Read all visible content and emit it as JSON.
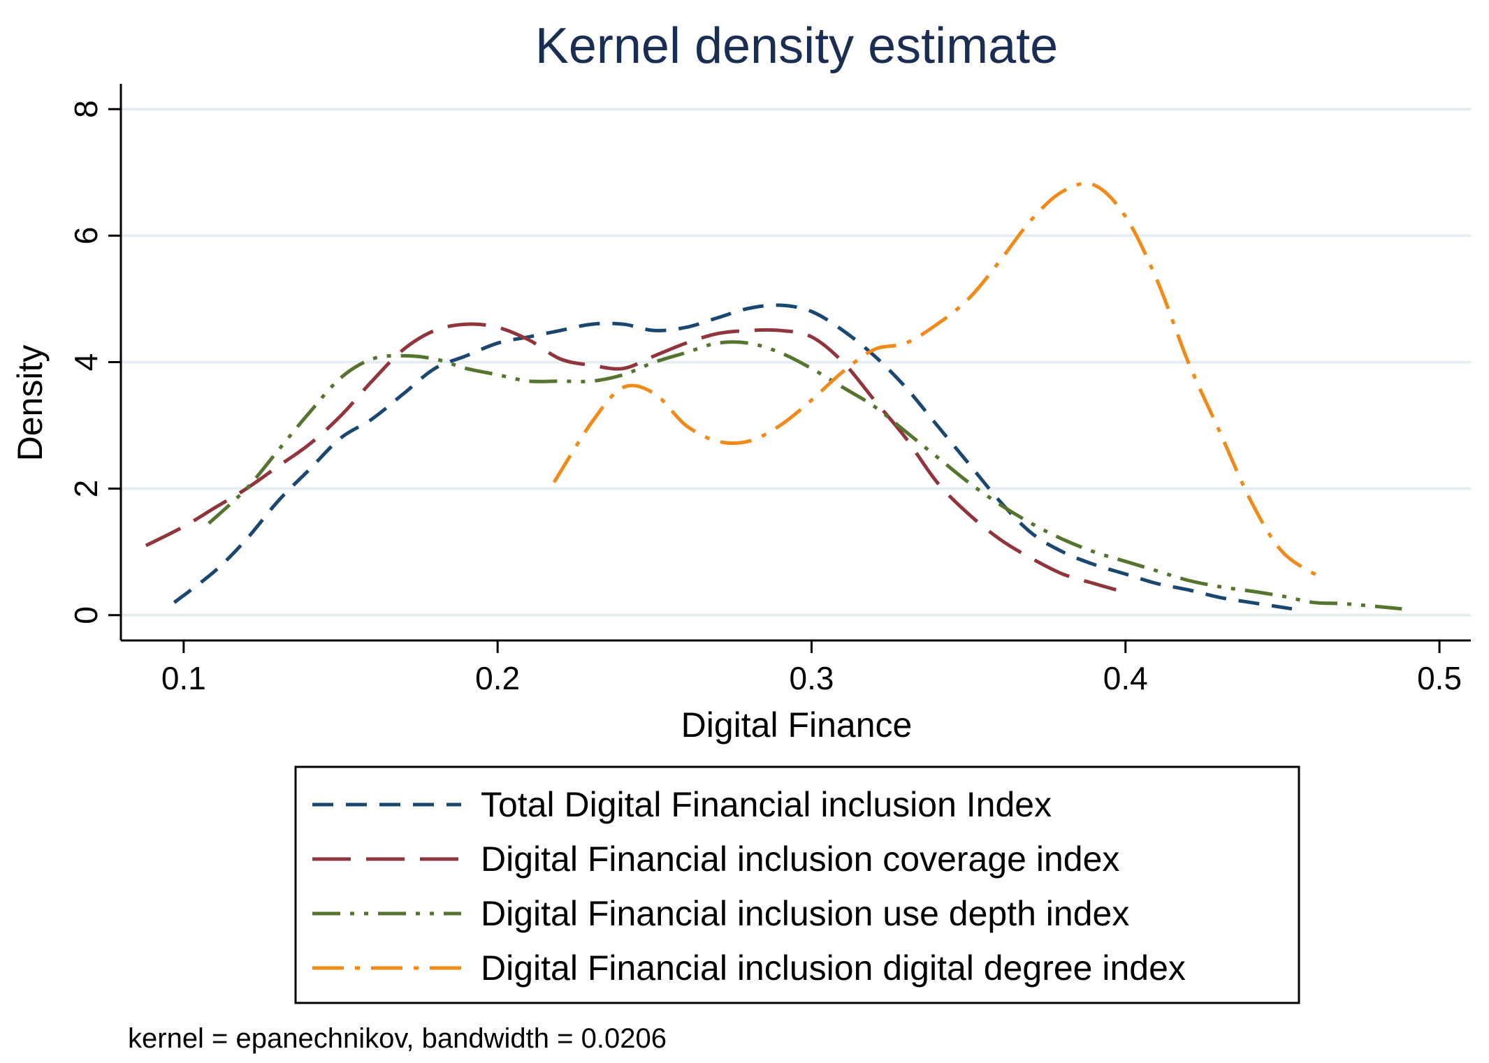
{
  "chart_data": {
    "type": "line",
    "title": "Kernel density estimate",
    "xlabel": "Digital Finance",
    "ylabel": "Density",
    "xlim": [
      0.08,
      0.51
    ],
    "ylim": [
      -0.4,
      8.4
    ],
    "xticks": [
      0.1,
      0.2,
      0.3,
      0.4,
      0.5
    ],
    "xtick_labels": [
      "0.1",
      "0.2",
      "0.3",
      "0.4",
      "0.5"
    ],
    "yticks": [
      0,
      2,
      4,
      6,
      8
    ],
    "ytick_labels": [
      "0",
      "2",
      "4",
      "6",
      "8"
    ],
    "grid": true,
    "legend_position": "bottom",
    "note": "kernel = epanechnikov, bandwidth = 0.0206",
    "colors": {
      "title": "#1a2d52",
      "grid": "#e4eef0",
      "axis": "#000000"
    },
    "series": [
      {
        "name": "Total Digital Financial inclusion Index",
        "color": "#1a476f",
        "style": "dash",
        "x": [
          0.097,
          0.11,
          0.12,
          0.13,
          0.14,
          0.15,
          0.16,
          0.17,
          0.18,
          0.19,
          0.2,
          0.21,
          0.22,
          0.23,
          0.24,
          0.25,
          0.26,
          0.27,
          0.28,
          0.29,
          0.3,
          0.31,
          0.32,
          0.33,
          0.34,
          0.35,
          0.36,
          0.37,
          0.38,
          0.39,
          0.4,
          0.41,
          0.42,
          0.43,
          0.44,
          0.453
        ],
        "y": [
          0.2,
          0.7,
          1.2,
          1.8,
          2.3,
          2.8,
          3.1,
          3.5,
          3.9,
          4.1,
          4.3,
          4.4,
          4.5,
          4.6,
          4.6,
          4.5,
          4.55,
          4.7,
          4.85,
          4.9,
          4.8,
          4.5,
          4.1,
          3.6,
          3.0,
          2.4,
          1.8,
          1.3,
          1.0,
          0.8,
          0.65,
          0.5,
          0.4,
          0.28,
          0.2,
          0.1
        ]
      },
      {
        "name": "Digital Financial inclusion coverage index",
        "color": "#90353b",
        "style": "longdash",
        "x": [
          0.088,
          0.1,
          0.11,
          0.12,
          0.13,
          0.14,
          0.15,
          0.16,
          0.17,
          0.18,
          0.19,
          0.2,
          0.21,
          0.22,
          0.23,
          0.24,
          0.25,
          0.26,
          0.27,
          0.28,
          0.29,
          0.3,
          0.31,
          0.32,
          0.33,
          0.34,
          0.35,
          0.36,
          0.37,
          0.38,
          0.39,
          0.397
        ],
        "y": [
          1.1,
          1.4,
          1.7,
          2.0,
          2.35,
          2.7,
          3.15,
          3.7,
          4.2,
          4.5,
          4.6,
          4.55,
          4.35,
          4.05,
          3.95,
          3.9,
          4.1,
          4.3,
          4.45,
          4.5,
          4.5,
          4.4,
          4.0,
          3.4,
          2.8,
          2.1,
          1.6,
          1.2,
          0.9,
          0.65,
          0.5,
          0.4
        ]
      },
      {
        "name": "Digital Financial inclusion use depth index",
        "color": "#55752f",
        "style": "dashdotdot",
        "x": [
          0.108,
          0.12,
          0.13,
          0.14,
          0.15,
          0.16,
          0.17,
          0.18,
          0.19,
          0.2,
          0.21,
          0.22,
          0.23,
          0.24,
          0.25,
          0.26,
          0.27,
          0.28,
          0.29,
          0.3,
          0.31,
          0.32,
          0.33,
          0.34,
          0.35,
          0.36,
          0.37,
          0.38,
          0.39,
          0.4,
          0.41,
          0.42,
          0.43,
          0.44,
          0.45,
          0.46,
          0.47,
          0.488
        ],
        "y": [
          1.45,
          2.0,
          2.6,
          3.2,
          3.75,
          4.05,
          4.1,
          4.05,
          3.9,
          3.8,
          3.7,
          3.7,
          3.7,
          3.8,
          4.0,
          4.15,
          4.3,
          4.3,
          4.15,
          3.9,
          3.6,
          3.3,
          2.9,
          2.5,
          2.1,
          1.75,
          1.45,
          1.2,
          1.0,
          0.85,
          0.7,
          0.55,
          0.45,
          0.38,
          0.3,
          0.2,
          0.18,
          0.1
        ]
      },
      {
        "name": "Digital Financial inclusion digital degree index",
        "color": "#f28a1a",
        "style": "dashdot",
        "x": [
          0.218,
          0.23,
          0.24,
          0.25,
          0.26,
          0.27,
          0.28,
          0.29,
          0.3,
          0.31,
          0.32,
          0.33,
          0.34,
          0.35,
          0.36,
          0.37,
          0.38,
          0.39,
          0.4,
          0.41,
          0.42,
          0.43,
          0.44,
          0.45,
          0.462
        ],
        "y": [
          2.1,
          3.05,
          3.6,
          3.5,
          3.0,
          2.75,
          2.75,
          3.0,
          3.4,
          3.85,
          4.2,
          4.3,
          4.6,
          5.0,
          5.6,
          6.25,
          6.7,
          6.8,
          6.3,
          5.3,
          4.0,
          2.9,
          1.8,
          1.0,
          0.6
        ]
      }
    ]
  }
}
